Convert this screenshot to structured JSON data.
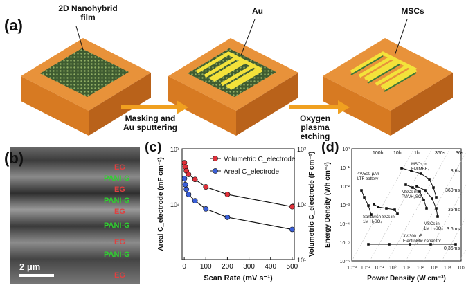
{
  "panel_a": {
    "label": "(a)",
    "film_label": "2D Nanohybrid film",
    "au_label": "Au",
    "mscs_label": "MSCs",
    "step1": "Masking and Au sputtering",
    "step2": "Oxygen plasma etching"
  },
  "panel_b": {
    "label": "(b)",
    "layers": [
      "EG",
      "PANI-G",
      "EG",
      "PANI-G",
      "EG",
      "PANI-G",
      "EG",
      "PANI-G",
      "EG"
    ],
    "scalebar": "2 μm"
  },
  "chart_c": {
    "label": "(c)",
    "type": "line",
    "xlabel": "Scan Rate (mV s⁻¹)",
    "ylabel_left": "Areal C_electrode (mF cm⁻²)",
    "ylabel_right": "Volumetric C_electrode (F cm⁻³)",
    "xticks": [
      "0",
      "100",
      "200",
      "300",
      "400",
      "500"
    ],
    "yticks_left": [
      "10²",
      "10³"
    ],
    "yticks_right": [
      "10¹",
      "10²",
      "10³"
    ],
    "legend": [
      "Volumetric C_electrode",
      "Areal C_electrode"
    ],
    "colors": {
      "volumetric": "#e0303a",
      "areal": "#3a5fd8"
    },
    "chart_data": {
      "x": [
        1,
        5,
        10,
        20,
        50,
        100,
        200,
        500
      ],
      "series": [
        {
          "name": "Volumetric C_electrode",
          "values": [
            560,
            470,
            400,
            345,
            280,
            205,
            150,
            90
          ]
        },
        {
          "name": "Areal C_electrode",
          "values": [
            290,
            225,
            185,
            150,
            115,
            82,
            58,
            35
          ]
        }
      ],
      "ylim_log": [
        10,
        1000
      ]
    }
  },
  "chart_d": {
    "label": "(d)",
    "type": "scatter",
    "xlabel": "Power Density (W cm⁻³)",
    "ylabel": "Energy Density (Wh cm⁻³)",
    "xticks": [
      "10⁻³",
      "10⁻²",
      "10⁻¹",
      "10⁰",
      "10¹",
      "10²",
      "10³",
      "10⁴",
      "10⁵"
    ],
    "yticks": [
      "10⁻⁶",
      "10⁻⁵",
      "10⁻⁴",
      "10⁻³",
      "10⁻²",
      "10⁻¹",
      "10⁰"
    ],
    "time_labels_top": [
      "100h",
      "10h",
      "1h",
      "360s",
      "36s"
    ],
    "time_labels_right": [
      "3.6s",
      "360ms",
      "36ms",
      "3.6ms",
      "0.36ms"
    ],
    "annotations": {
      "battery": "4V/500 μAh LTF battery",
      "sandwich": "Sandwich-SCs in 1M H₂SO₄",
      "emimbf4": "MSCs in EMIMBF₄",
      "pva": "MSCs in PVA/H₂SO₄",
      "h2so4": "MSCs in 1M H₂SO₄",
      "electrolytic": "3V/300 μF Electrolytic capacitor"
    }
  }
}
